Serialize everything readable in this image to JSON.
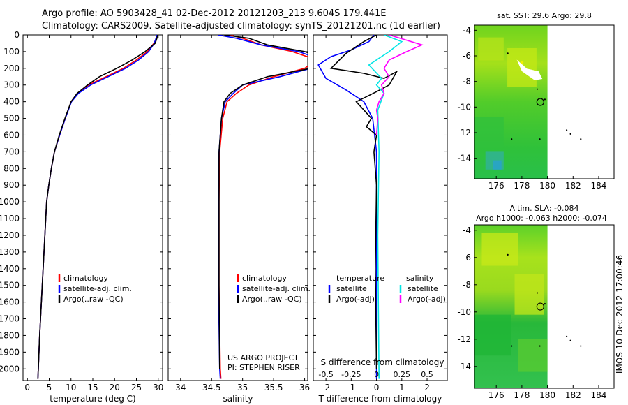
{
  "header": {
    "line1": "Argo profile: AO 5903428_41 02-Dec-2012 20121203_213 9.604S 179.441E",
    "line2": "Climatology: CARS2009. Satellite-adjusted climatology: synTS_20121201.nc (1d earlier)"
  },
  "colors": {
    "climatology": "#ff0000",
    "satellite": "#0000ff",
    "argo": "#000000",
    "salinity_satellite": "#00e5e5",
    "salinity_argo": "#ff00ff"
  },
  "credits": {
    "project": "US ARGO PROJECT",
    "pi": "PI: STEPHEN RISER"
  },
  "timestamp_vertical": "IMOS 10-Dec-2012 17:00:46",
  "chart_data": [
    {
      "id": "temperature",
      "type": "line",
      "xlabel": "temperature (deg C)",
      "xlim": [
        -1,
        31
      ],
      "xticks": [
        0,
        5,
        10,
        15,
        20,
        25,
        30
      ],
      "ylim": [
        2070,
        0
      ],
      "yticks": [
        0,
        100,
        200,
        300,
        400,
        500,
        600,
        700,
        800,
        900,
        1000,
        1100,
        1200,
        1300,
        1400,
        1500,
        1600,
        1700,
        1800,
        1900,
        2000
      ],
      "legend": [
        "climatology",
        "satellite-adj. clim.",
        "Argo(..raw -QC)"
      ],
      "series": [
        {
          "name": "climatology",
          "color": "#ff0000",
          "points": [
            [
              29.8,
              0
            ],
            [
              29.6,
              20
            ],
            [
              29.0,
              50
            ],
            [
              27.5,
              100
            ],
            [
              25.0,
              150
            ],
            [
              22.0,
              200
            ],
            [
              18.0,
              250
            ],
            [
              14.0,
              300
            ],
            [
              11.5,
              350
            ],
            [
              10.0,
              400
            ],
            [
              8.7,
              500
            ],
            [
              7.4,
              600
            ],
            [
              6.2,
              700
            ],
            [
              5.5,
              800
            ],
            [
              4.9,
              900
            ],
            [
              4.4,
              1000
            ],
            [
              4.0,
              1200
            ],
            [
              3.6,
              1400
            ],
            [
              3.2,
              1600
            ],
            [
              2.8,
              1800
            ],
            [
              2.5,
              2000
            ],
            [
              2.4,
              2060
            ]
          ]
        },
        {
          "name": "satellite-adj. clim.",
          "color": "#0000ff",
          "points": [
            [
              29.7,
              0
            ],
            [
              29.5,
              20
            ],
            [
              29.1,
              50
            ],
            [
              27.8,
              100
            ],
            [
              25.5,
              150
            ],
            [
              22.5,
              200
            ],
            [
              18.5,
              250
            ],
            [
              14.5,
              300
            ],
            [
              11.7,
              350
            ],
            [
              10.1,
              400
            ],
            [
              8.7,
              500
            ],
            [
              7.4,
              600
            ],
            [
              6.2,
              700
            ],
            [
              5.5,
              800
            ],
            [
              4.9,
              900
            ],
            [
              4.4,
              1000
            ],
            [
              4.0,
              1200
            ],
            [
              3.6,
              1400
            ],
            [
              3.2,
              1600
            ],
            [
              2.8,
              1800
            ],
            [
              2.5,
              2000
            ],
            [
              2.4,
              2060
            ]
          ]
        },
        {
          "name": "Argo(..raw -QC)",
          "color": "#000000",
          "points": [
            [
              29.9,
              0
            ],
            [
              29.7,
              20
            ],
            [
              29.3,
              50
            ],
            [
              27.0,
              100
            ],
            [
              24.0,
              150
            ],
            [
              20.5,
              200
            ],
            [
              16.5,
              250
            ],
            [
              13.8,
              300
            ],
            [
              11.4,
              350
            ],
            [
              10.0,
              400
            ],
            [
              8.6,
              500
            ],
            [
              7.3,
              600
            ],
            [
              6.2,
              700
            ],
            [
              5.5,
              800
            ],
            [
              4.9,
              900
            ],
            [
              4.4,
              1000
            ],
            [
              4.0,
              1200
            ],
            [
              3.6,
              1400
            ],
            [
              3.2,
              1600
            ],
            [
              2.8,
              1800
            ],
            [
              2.5,
              2000
            ],
            [
              2.4,
              2060
            ]
          ]
        }
      ]
    },
    {
      "id": "salinity",
      "type": "line",
      "xlabel": "salinity",
      "xlim": [
        33.8,
        36.05
      ],
      "xticks": [
        34,
        34.5,
        35,
        35.5,
        36
      ],
      "ylim": [
        2070,
        0
      ],
      "legend": [
        "climatology",
        "satellite-adj. clim.",
        "Argo(..raw -QC)"
      ],
      "series": [
        {
          "name": "climatology",
          "color": "#ff0000",
          "points": [
            [
              34.8,
              0
            ],
            [
              35.0,
              20
            ],
            [
              35.3,
              60
            ],
            [
              35.8,
              100
            ],
            [
              36.2,
              150
            ],
            [
              36.0,
              200
            ],
            [
              35.5,
              250
            ],
            [
              35.1,
              300
            ],
            [
              34.9,
              350
            ],
            [
              34.75,
              400
            ],
            [
              34.68,
              500
            ],
            [
              34.63,
              700
            ],
            [
              34.62,
              1000
            ],
            [
              34.62,
              1500
            ],
            [
              34.64,
              2000
            ],
            [
              34.65,
              2060
            ]
          ]
        },
        {
          "name": "satellite-adj. clim.",
          "color": "#0000ff",
          "points": [
            [
              34.6,
              0
            ],
            [
              34.9,
              20
            ],
            [
              35.3,
              60
            ],
            [
              35.9,
              100
            ],
            [
              36.3,
              150
            ],
            [
              36.1,
              200
            ],
            [
              35.6,
              250
            ],
            [
              35.0,
              300
            ],
            [
              34.85,
              350
            ],
            [
              34.72,
              400
            ],
            [
              34.66,
              500
            ],
            [
              34.62,
              700
            ],
            [
              34.61,
              1000
            ],
            [
              34.61,
              1500
            ],
            [
              34.63,
              2000
            ],
            [
              34.64,
              2060
            ]
          ]
        },
        {
          "name": "Argo(..raw -QC)",
          "color": "#000000",
          "points": [
            [
              34.7,
              0
            ],
            [
              35.1,
              20
            ],
            [
              35.4,
              60
            ],
            [
              36.0,
              100
            ],
            [
              36.4,
              150
            ],
            [
              36.1,
              200
            ],
            [
              35.4,
              250
            ],
            [
              35.0,
              300
            ],
            [
              34.8,
              350
            ],
            [
              34.7,
              400
            ],
            [
              34.66,
              500
            ],
            [
              34.62,
              700
            ],
            [
              34.62,
              1000
            ],
            [
              34.62,
              1500
            ],
            [
              34.63,
              2000
            ]
          ]
        }
      ]
    },
    {
      "id": "difference",
      "type": "line",
      "xlabel": "T difference from climatology",
      "xlabel2": "S difference from climatology",
      "xlim": [
        -2.5,
        2.8
      ],
      "xticks": [
        -2,
        -1,
        0,
        1,
        2
      ],
      "xticks_top": [
        "-0.5",
        "-0.25",
        "0",
        "0.25",
        "0.5"
      ],
      "ylim": [
        2070,
        0
      ],
      "legend_headers": [
        "temperature",
        "salinity"
      ],
      "legend": [
        "satellite",
        "Argo(-adj)",
        "satellite",
        "Argo(-adj)"
      ],
      "series": [
        {
          "name": "satellite",
          "group": "temperature",
          "color": "#0000ff",
          "points": [
            [
              -0.1,
              0
            ],
            [
              -0.3,
              40
            ],
            [
              -1.0,
              90
            ],
            [
              -1.8,
              130
            ],
            [
              -2.3,
              180
            ],
            [
              -2.0,
              260
            ],
            [
              -1.2,
              330
            ],
            [
              -0.5,
              400
            ],
            [
              -0.15,
              500
            ],
            [
              0.0,
              700
            ],
            [
              0.0,
              2060
            ]
          ]
        },
        {
          "name": "Argo(-adj)",
          "group": "temperature",
          "color": "#000000",
          "points": [
            [
              0.0,
              0
            ],
            [
              -0.5,
              40
            ],
            [
              -1.2,
              110
            ],
            [
              -1.8,
              200
            ],
            [
              -0.5,
              230
            ],
            [
              0.3,
              260
            ],
            [
              0.8,
              220
            ],
            [
              0.5,
              300
            ],
            [
              0.0,
              340
            ],
            [
              -0.8,
              400
            ],
            [
              -0.5,
              450
            ],
            [
              -0.2,
              500
            ],
            [
              -0.4,
              550
            ],
            [
              0.0,
              600
            ],
            [
              -0.1,
              700
            ],
            [
              0.0,
              900
            ],
            [
              -0.05,
              1400
            ],
            [
              0.0,
              2000
            ]
          ]
        },
        {
          "name": "satellite",
          "group": "salinity",
          "color": "#00e5e5",
          "points": [
            [
              0.3,
              0
            ],
            [
              1.0,
              40
            ],
            [
              0.5,
              100
            ],
            [
              -0.3,
              180
            ],
            [
              0.2,
              260
            ],
            [
              0.0,
              300
            ],
            [
              0.3,
              350
            ],
            [
              0.05,
              450
            ],
            [
              0.1,
              700
            ],
            [
              0.05,
              1200
            ],
            [
              0.1,
              2060
            ]
          ]
        },
        {
          "name": "Argo(-adj)",
          "group": "salinity",
          "color": "#ff00ff",
          "points": [
            [
              0.5,
              0
            ],
            [
              1.8,
              60
            ],
            [
              1.2,
              100
            ],
            [
              0.5,
              150
            ],
            [
              0.3,
              200
            ],
            [
              0.5,
              250
            ],
            [
              0.2,
              300
            ],
            [
              0.3,
              350
            ],
            [
              0.1,
              400
            ],
            [
              0.0,
              450
            ],
            [
              0.05,
              500
            ],
            [
              0.0,
              600
            ]
          ]
        }
      ]
    },
    {
      "id": "sst_map",
      "type": "heatmap",
      "title": "sat. SST: 29.6 Argo: 29.8",
      "xlim": [
        174.3,
        185.2
      ],
      "ylim": [
        -15.6,
        -3.6
      ],
      "xticks": [
        176,
        178,
        180,
        182,
        184
      ],
      "yticks": [
        -4,
        -6,
        -8,
        -10,
        -12,
        -14
      ],
      "data_extent_lon": [
        174.3,
        180.0
      ],
      "argo_position": [
        179.441,
        -9.604
      ]
    },
    {
      "id": "sla_map",
      "type": "heatmap",
      "title": "Altim. SLA: -0.084",
      "subtitle": "Argo h1000: -0.063 h2000: -0.074",
      "xlim": [
        174.3,
        185.2
      ],
      "ylim": [
        -15.6,
        -3.6
      ],
      "xticks": [
        176,
        178,
        180,
        182,
        184
      ],
      "yticks": [
        -4,
        -6,
        -8,
        -10,
        -12,
        -14
      ],
      "data_extent_lon": [
        174.3,
        180.0
      ],
      "argo_position": [
        179.441,
        -9.604
      ]
    }
  ]
}
